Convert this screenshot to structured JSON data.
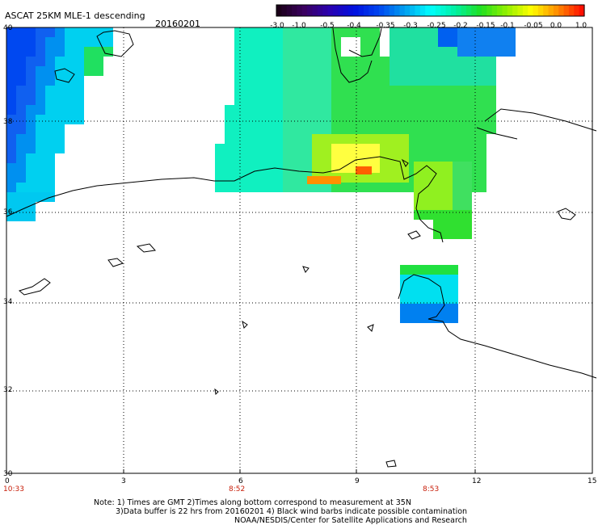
{
  "header": {
    "title": "ASCAT 25KM MLE-1 descending",
    "date": "20160201"
  },
  "colorbar": {
    "labels": [
      "-3.0",
      "-1.0",
      "-0.5",
      "-0.4",
      "-0.35",
      "-0.3",
      "-0.25",
      "-0.2",
      "-0.15",
      "-0.1",
      "-0.05",
      "0.0",
      "1.0"
    ],
    "colors": [
      "#1a0018",
      "#3a0060",
      "#2a00b0",
      "#0010e0",
      "#0048f0",
      "#00a0f0",
      "#00ffff",
      "#00f0a0",
      "#20e020",
      "#90f000",
      "#ffff00",
      "#ff9000",
      "#ff1000"
    ]
  },
  "axes": {
    "lat_labels": [
      "40",
      "38",
      "36",
      "34",
      "32",
      "30"
    ],
    "lon_labels": [
      "0",
      "3",
      "6",
      "9",
      "12",
      "15"
    ]
  },
  "times": [
    "10:33",
    "8:52",
    "8:53"
  ],
  "footer": {
    "line1": "Note: 1) Times are GMT 2)Times along bottom correspond to measurement at 35N",
    "line2": "3)Data buffer is 22 hrs from 20160201 4) Black wind barbs indicate possible contamination",
    "line3": "NOAA/NESDIS/Center for Satellite Applications and Research"
  }
}
